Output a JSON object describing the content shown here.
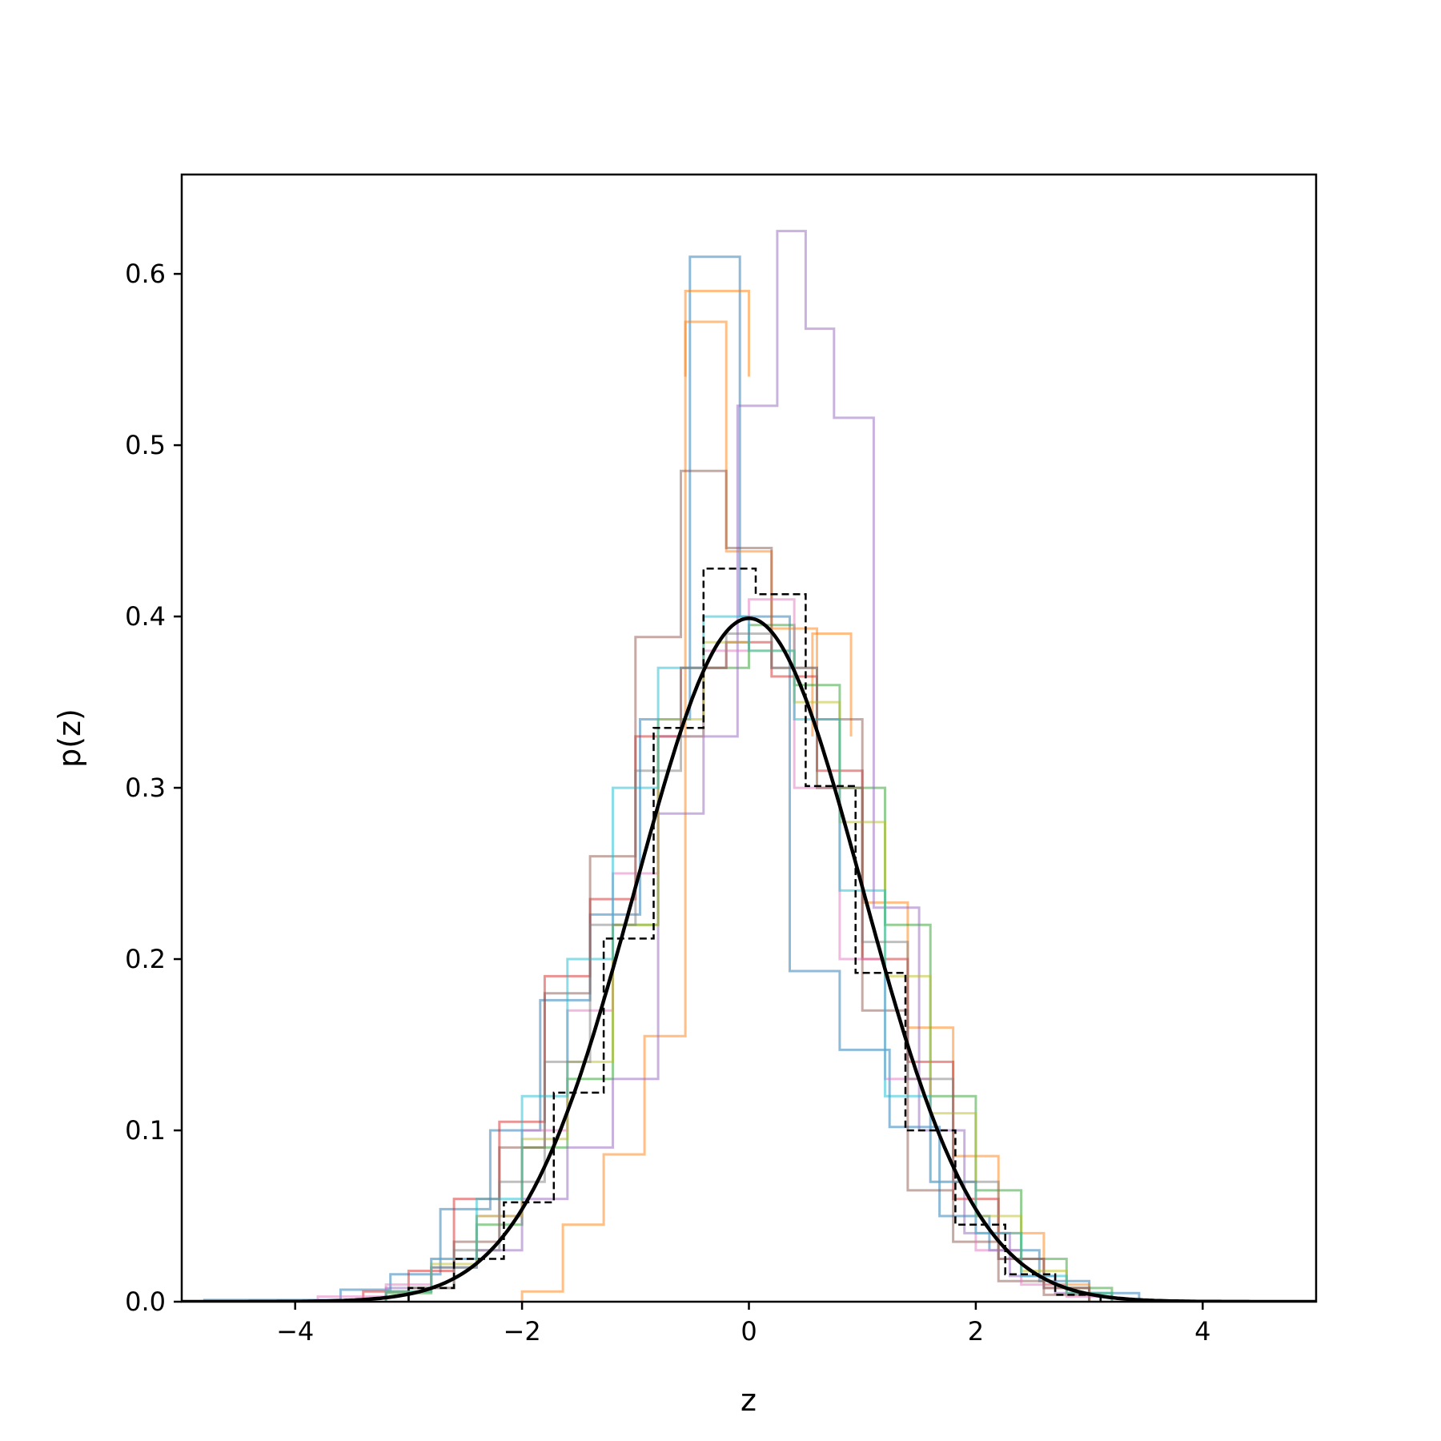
{
  "chart_data": {
    "type": "line",
    "xlabel": "z",
    "ylabel": "p(z)",
    "xlim": [
      -5,
      5
    ],
    "ylim": [
      0,
      0.658
    ],
    "x_ticks": [
      -4,
      -2,
      0,
      2,
      4
    ],
    "x_tick_labels": [
      "−4",
      "−2",
      "0",
      "2",
      "4"
    ],
    "y_ticks": [
      0.0,
      0.1,
      0.2,
      0.3,
      0.4,
      0.5,
      0.6
    ],
    "y_tick_labels": [
      "0.0",
      "0.1",
      "0.2",
      "0.3",
      "0.4",
      "0.5",
      "0.6"
    ],
    "grid": false,
    "legend": "none",
    "histograms": [
      {
        "color": "#1f77b4",
        "edges": [
          -4.8,
          -3.6,
          -3.16,
          -2.72,
          -2.28,
          -1.84,
          -1.4,
          -0.96,
          -0.52,
          -0.08,
          0.36,
          0.8,
          1.24,
          1.68,
          2.12,
          2.56,
          3.0,
          3.44
        ],
        "values": [
          0.001,
          0.007,
          0.016,
          0.054,
          0.1,
          0.176,
          0.226,
          0.34,
          0.61,
          0.4,
          0.193,
          0.147,
          0.102,
          0.05,
          0.03,
          0.012,
          0.005
        ]
      },
      {
        "color": "#ff7f0e",
        "edges": [
          -2.0,
          -1.64,
          -1.28,
          -0.92,
          -0.56,
          -0.2,
          0.2,
          0.6,
          1.0,
          1.4,
          1.8,
          2.2,
          2.6,
          3.0
        ],
        "values": [
          0.006,
          0.045,
          0.086,
          0.155,
          0.572,
          0.438,
          0.393,
          0.3,
          0.233,
          0.16,
          0.085,
          0.04,
          0.01
        ],
        "extra": [
          [
            -0.56,
            0.0,
            0.54,
            0.59
          ],
          [
            0.56,
            0.9,
            0.33,
            0.39
          ]
        ]
      },
      {
        "color": "#2ca02c",
        "edges": [
          -3.2,
          -2.8,
          -2.4,
          -2.0,
          -1.6,
          -1.2,
          -0.8,
          -0.4,
          0.0,
          0.4,
          0.8,
          1.2,
          1.6,
          2.0,
          2.4,
          2.8,
          3.2
        ],
        "values": [
          0.005,
          0.02,
          0.045,
          0.09,
          0.13,
          0.22,
          0.33,
          0.37,
          0.395,
          0.36,
          0.3,
          0.22,
          0.12,
          0.065,
          0.025,
          0.008
        ]
      },
      {
        "color": "#d62728",
        "edges": [
          -3.4,
          -3.0,
          -2.6,
          -2.2,
          -1.8,
          -1.4,
          -1.0,
          -0.6,
          -0.2,
          0.2,
          0.6,
          1.0,
          1.4,
          1.8,
          2.2,
          2.6,
          3.0
        ],
        "values": [
          0.006,
          0.018,
          0.06,
          0.105,
          0.19,
          0.235,
          0.33,
          0.37,
          0.385,
          0.365,
          0.31,
          0.2,
          0.14,
          0.06,
          0.025,
          0.008
        ]
      },
      {
        "color": "#9467bd",
        "edges": [
          -3.2,
          -2.8,
          -2.4,
          -2.0,
          -1.6,
          -1.2,
          -0.8,
          -0.4,
          -0.1,
          0.25,
          0.5,
          0.75,
          1.1,
          1.5,
          1.9,
          2.3,
          2.7,
          3.1
        ],
        "values": [
          0.008,
          0.02,
          0.03,
          0.06,
          0.09,
          0.13,
          0.285,
          0.33,
          0.523,
          0.625,
          0.568,
          0.516,
          0.23,
          0.1,
          0.04,
          0.015,
          0.005
        ]
      },
      {
        "color": "#8c564b",
        "edges": [
          -3.0,
          -2.6,
          -2.2,
          -1.8,
          -1.4,
          -1.0,
          -0.6,
          -0.2,
          0.2,
          0.6,
          1.0,
          1.4,
          1.8,
          2.2,
          2.6,
          3.0
        ],
        "values": [
          0.008,
          0.035,
          0.09,
          0.18,
          0.26,
          0.388,
          0.485,
          0.44,
          0.37,
          0.34,
          0.17,
          0.065,
          0.035,
          0.012,
          0.004
        ]
      },
      {
        "color": "#e377c2",
        "edges": [
          -3.8,
          -3.2,
          -2.8,
          -2.4,
          -2.0,
          -1.6,
          -1.2,
          -0.8,
          -0.4,
          0.0,
          0.4,
          0.8,
          1.2,
          1.6,
          2.0,
          2.4,
          2.8,
          3.2
        ],
        "values": [
          0.003,
          0.01,
          0.025,
          0.05,
          0.1,
          0.17,
          0.25,
          0.33,
          0.38,
          0.41,
          0.3,
          0.2,
          0.13,
          0.07,
          0.03,
          0.01,
          0.003
        ]
      },
      {
        "color": "#bcbd22",
        "edges": [
          -3.2,
          -2.8,
          -2.4,
          -2.0,
          -1.6,
          -1.2,
          -0.8,
          -0.4,
          0.0,
          0.4,
          0.8,
          1.2,
          1.6,
          2.0,
          2.4,
          2.8,
          3.2
        ],
        "values": [
          0.006,
          0.022,
          0.05,
          0.095,
          0.14,
          0.22,
          0.34,
          0.385,
          0.38,
          0.35,
          0.28,
          0.19,
          0.11,
          0.05,
          0.018,
          0.005
        ]
      },
      {
        "color": "#17becf",
        "edges": [
          -3.2,
          -2.8,
          -2.4,
          -2.0,
          -1.6,
          -1.2,
          -0.8,
          -0.4,
          0.0,
          0.4,
          0.8,
          1.2,
          1.6,
          2.0,
          2.4,
          2.8,
          3.2
        ],
        "values": [
          0.006,
          0.025,
          0.06,
          0.12,
          0.2,
          0.3,
          0.37,
          0.4,
          0.38,
          0.34,
          0.24,
          0.12,
          0.07,
          0.04,
          0.015,
          0.005
        ]
      },
      {
        "color": "#7f7f7f",
        "edges": [
          -3.0,
          -2.6,
          -2.2,
          -1.8,
          -1.4,
          -1.0,
          -0.6,
          -0.2,
          0.2,
          0.6,
          1.0,
          1.4,
          1.8,
          2.2,
          2.6,
          3.0
        ],
        "values": [
          0.008,
          0.03,
          0.07,
          0.14,
          0.22,
          0.31,
          0.37,
          0.39,
          0.37,
          0.3,
          0.21,
          0.13,
          0.07,
          0.025,
          0.008
        ]
      }
    ],
    "dashed_histogram": {
      "color": "#000000",
      "edges": [
        -3.0,
        -2.6,
        -2.16,
        -1.72,
        -1.28,
        -0.84,
        -0.4,
        0.06,
        0.5,
        0.94,
        1.38,
        1.82,
        2.26,
        2.7,
        3.1
      ],
      "values": [
        0.008,
        0.025,
        0.058,
        0.122,
        0.212,
        0.335,
        0.428,
        0.413,
        0.301,
        0.192,
        0.1,
        0.045,
        0.016,
        0.004
      ]
    },
    "curve": {
      "type": "standard-normal-pdf",
      "mean": 0,
      "std": 1,
      "color": "#000000",
      "x_range": [
        -5,
        5
      ]
    }
  }
}
